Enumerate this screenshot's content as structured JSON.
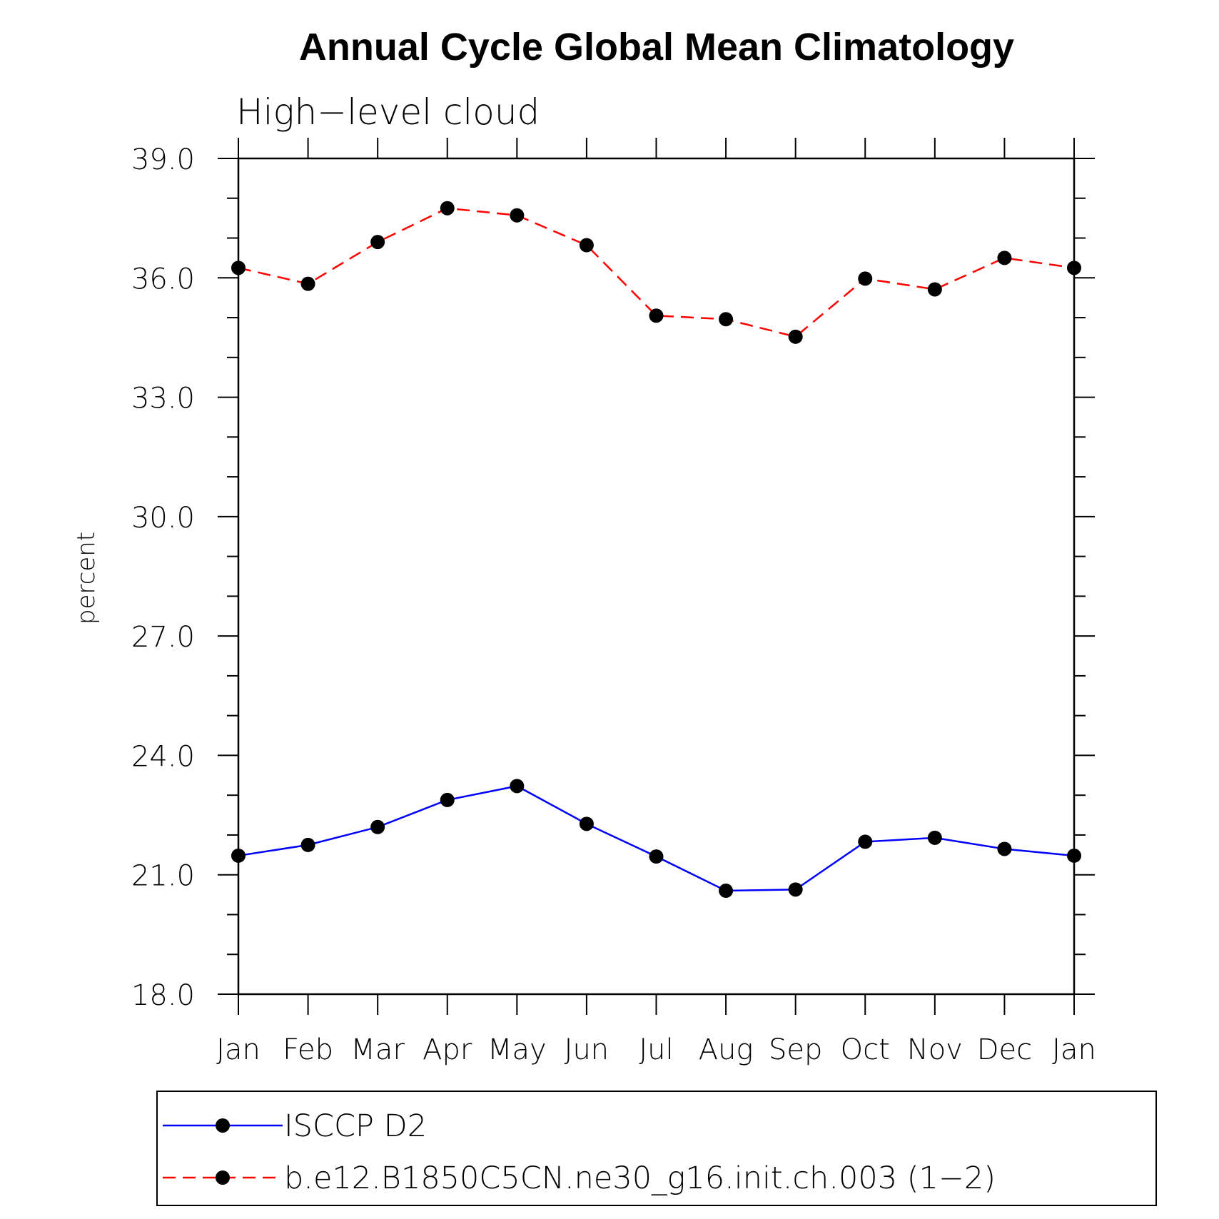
{
  "chart_data": {
    "type": "line",
    "title": "Annual Cycle Global Mean Climatology",
    "subtitle": "High−level cloud",
    "xlabel": "",
    "ylabel": "percent",
    "categories": [
      "Jan",
      "Feb",
      "Mar",
      "Apr",
      "May",
      "Jun",
      "Jul",
      "Aug",
      "Sep",
      "Oct",
      "Nov",
      "Dec",
      "Jan"
    ],
    "ylim": [
      18.0,
      39.0
    ],
    "yticks": [
      18.0,
      21.0,
      24.0,
      27.0,
      30.0,
      33.0,
      36.0,
      39.0
    ],
    "ytick_labels": [
      "18.0",
      "21.0",
      "24.0",
      "27.0",
      "30.0",
      "33.0",
      "36.0",
      "39.0"
    ],
    "grid": false,
    "legend_position": "bottom",
    "series": [
      {
        "name": "ISCCP D2",
        "color": "#0000ff",
        "dash": "solid",
        "marker": "filled-circle",
        "values": [
          21.48,
          21.75,
          22.2,
          22.88,
          23.23,
          22.28,
          21.46,
          20.6,
          20.63,
          21.83,
          21.93,
          21.65,
          21.48
        ]
      },
      {
        "name": "b.e12.B1850C5CN.ne30_g16.init.ch.003 (1−2)",
        "color": "#ff0000",
        "dash": "dashed",
        "marker": "filled-circle",
        "values": [
          36.25,
          35.85,
          36.9,
          37.75,
          37.57,
          36.82,
          35.05,
          34.96,
          34.52,
          35.98,
          35.71,
          36.5,
          36.25
        ]
      }
    ]
  }
}
